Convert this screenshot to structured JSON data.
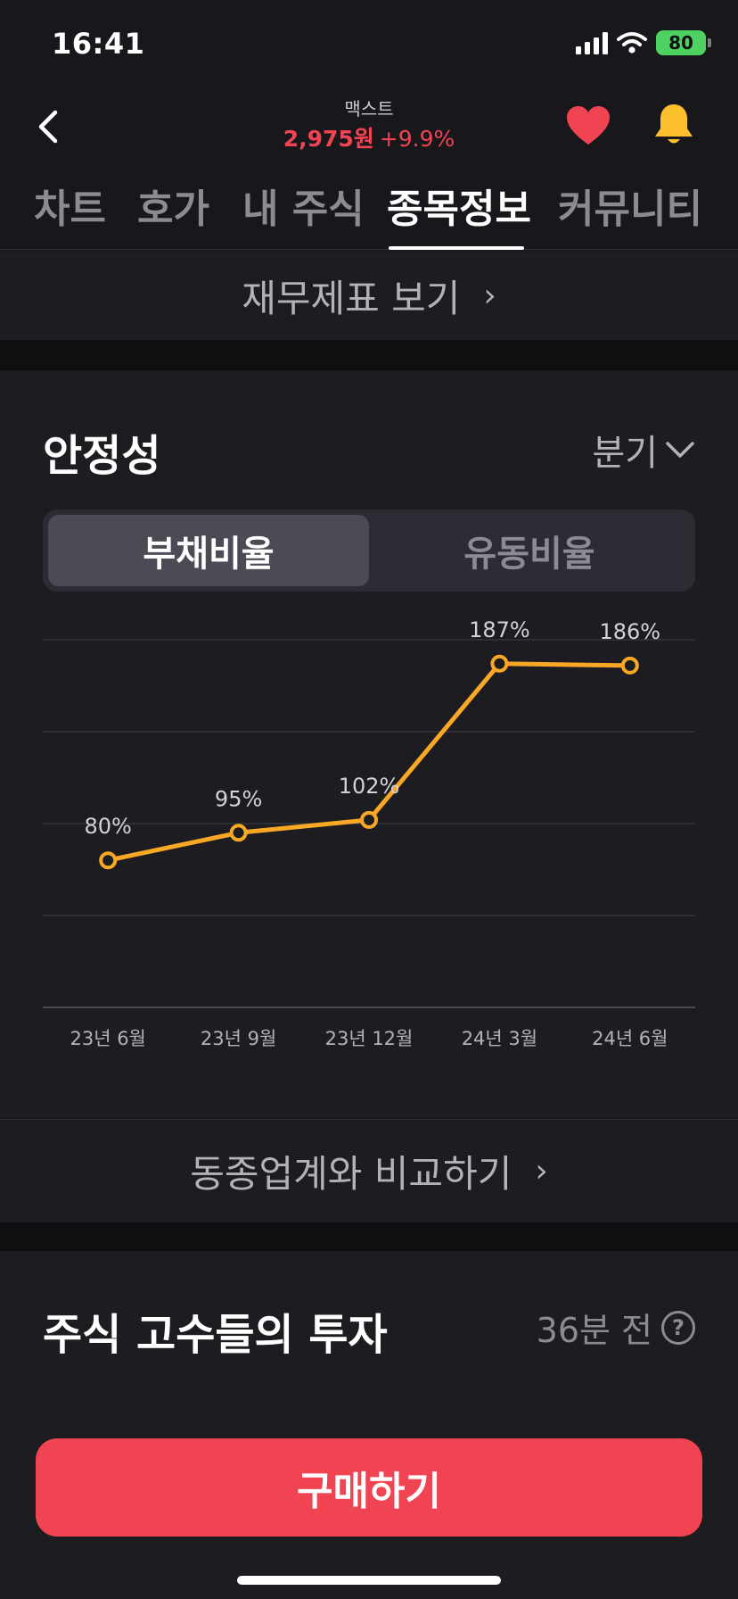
{
  "status_bar": {
    "time": "16:41",
    "battery": "80"
  },
  "header": {
    "stock_name": "맥스트",
    "price": "2,975원",
    "change": "+9.9%"
  },
  "tabs": [
    {
      "label": "차트"
    },
    {
      "label": "호가"
    },
    {
      "label": "내 주식"
    },
    {
      "label": "종목정보"
    },
    {
      "label": "커뮤니티"
    }
  ],
  "fin_statement_link": "재무제표 보기",
  "stability": {
    "title": "안정성",
    "period": "분기",
    "segments": [
      "부채비율",
      "유동비율"
    ],
    "peer_link": "동종업계와 비교하기"
  },
  "chart_data": {
    "type": "line",
    "categories": [
      "23년 6월",
      "23년 9월",
      "23년 12월",
      "24년 3월",
      "24년 6월"
    ],
    "values": [
      80,
      95,
      102,
      187,
      186
    ],
    "data_labels": [
      "80%",
      "95%",
      "102%",
      "187%",
      "186%"
    ],
    "ylim": [
      0,
      200
    ],
    "grid": true,
    "colors": {
      "line": "#f9a825",
      "grid": "#34343c",
      "label": "#d2d2d8"
    }
  },
  "investors": {
    "title": "주식 고수들의 투자",
    "time": "36분 전"
  },
  "buy_button": "구매하기",
  "colors": {
    "accent_red": "#f04452",
    "background": "#17171c",
    "panel": "#1c1c21"
  }
}
